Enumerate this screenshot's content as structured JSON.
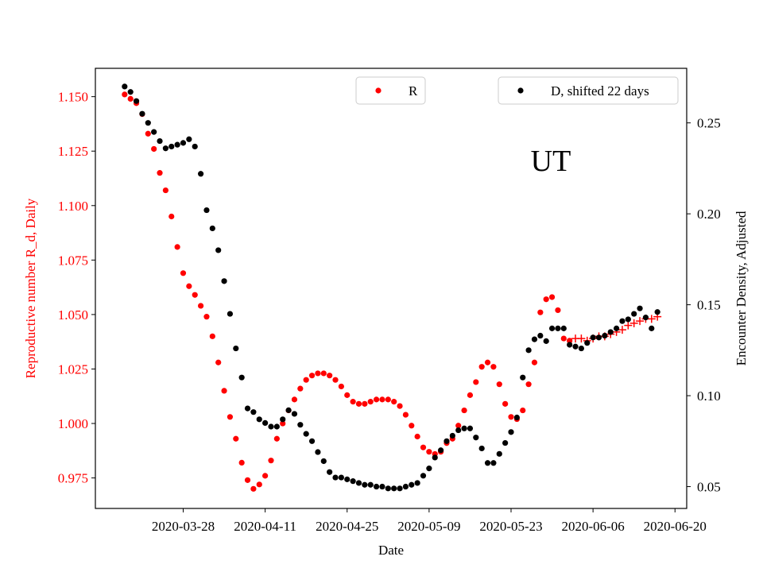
{
  "chart_data": {
    "type": "scatter",
    "annotation": "UT",
    "xlabel": "Date",
    "x_ticks": [
      "2020-03-28",
      "2020-04-11",
      "2020-04-25",
      "2020-05-09",
      "2020-05-23",
      "2020-06-06",
      "2020-06-20"
    ],
    "xlim": [
      "2020-03-13",
      "2020-06-22"
    ],
    "y_left": {
      "label": "Reproductive number R_d, Daily",
      "color": "#ff0000",
      "ticks": [
        "0.975",
        "1.000",
        "1.025",
        "1.050",
        "1.075",
        "1.100",
        "1.125",
        "1.150"
      ],
      "lim": [
        0.961,
        1.163
      ]
    },
    "y_right": {
      "label": "Encounter Density, Adjusted",
      "color": "#000000",
      "ticks": [
        "0.05",
        "0.10",
        "0.15",
        "0.20",
        "0.25"
      ],
      "lim": [
        0.038,
        0.28
      ]
    },
    "legend": [
      {
        "label": "R",
        "color": "#ff0000",
        "position": "top-center"
      },
      {
        "label": "D, shifted 22 days",
        "color": "#000000",
        "position": "top-right"
      }
    ],
    "series": [
      {
        "name": "R",
        "axis": "left",
        "color": "#ff0000",
        "marker": "dot",
        "data": [
          [
            "2020-03-18",
            1.151
          ],
          [
            "2020-03-19",
            1.149
          ],
          [
            "2020-03-20",
            1.147
          ],
          [
            "2020-03-21",
            1.142
          ],
          [
            "2020-03-22",
            1.133
          ],
          [
            "2020-03-23",
            1.126
          ],
          [
            "2020-03-24",
            1.115
          ],
          [
            "2020-03-25",
            1.107
          ],
          [
            "2020-03-26",
            1.095
          ],
          [
            "2020-03-27",
            1.081
          ],
          [
            "2020-03-28",
            1.069
          ],
          [
            "2020-03-29",
            1.063
          ],
          [
            "2020-03-30",
            1.059
          ],
          [
            "2020-03-31",
            1.054
          ],
          [
            "2020-04-01",
            1.049
          ],
          [
            "2020-04-02",
            1.04
          ],
          [
            "2020-04-03",
            1.028
          ],
          [
            "2020-04-04",
            1.015
          ],
          [
            "2020-04-05",
            1.003
          ],
          [
            "2020-04-06",
            0.993
          ],
          [
            "2020-04-07",
            0.982
          ],
          [
            "2020-04-08",
            0.974
          ],
          [
            "2020-04-09",
            0.97
          ],
          [
            "2020-04-10",
            0.972
          ],
          [
            "2020-04-11",
            0.976
          ],
          [
            "2020-04-12",
            0.983
          ],
          [
            "2020-04-13",
            0.993
          ],
          [
            "2020-04-14",
            1.0
          ],
          [
            "2020-04-15",
            1.006
          ],
          [
            "2020-04-16",
            1.011
          ],
          [
            "2020-04-17",
            1.016
          ],
          [
            "2020-04-18",
            1.02
          ],
          [
            "2020-04-19",
            1.022
          ],
          [
            "2020-04-20",
            1.023
          ],
          [
            "2020-04-21",
            1.023
          ],
          [
            "2020-04-22",
            1.022
          ],
          [
            "2020-04-23",
            1.02
          ],
          [
            "2020-04-24",
            1.017
          ],
          [
            "2020-04-25",
            1.013
          ],
          [
            "2020-04-26",
            1.01
          ],
          [
            "2020-04-27",
            1.009
          ],
          [
            "2020-04-28",
            1.009
          ],
          [
            "2020-04-29",
            1.01
          ],
          [
            "2020-04-30",
            1.011
          ],
          [
            "2020-05-01",
            1.011
          ],
          [
            "2020-05-02",
            1.011
          ],
          [
            "2020-05-03",
            1.01
          ],
          [
            "2020-05-04",
            1.008
          ],
          [
            "2020-05-05",
            1.004
          ],
          [
            "2020-05-06",
            0.999
          ],
          [
            "2020-05-07",
            0.994
          ],
          [
            "2020-05-08",
            0.989
          ],
          [
            "2020-05-09",
            0.987
          ],
          [
            "2020-05-10",
            0.986
          ],
          [
            "2020-05-11",
            0.987
          ],
          [
            "2020-05-12",
            0.991
          ],
          [
            "2020-05-13",
            0.993
          ],
          [
            "2020-05-14",
            0.999
          ],
          [
            "2020-05-15",
            1.006
          ],
          [
            "2020-05-16",
            1.013
          ],
          [
            "2020-05-17",
            1.019
          ],
          [
            "2020-05-18",
            1.026
          ],
          [
            "2020-05-19",
            1.028
          ],
          [
            "2020-05-20",
            1.026
          ],
          [
            "2020-05-21",
            1.018
          ],
          [
            "2020-05-22",
            1.009
          ],
          [
            "2020-05-23",
            1.003
          ],
          [
            "2020-05-24",
            1.002
          ],
          [
            "2020-05-25",
            1.006
          ],
          [
            "2020-05-26",
            1.018
          ],
          [
            "2020-05-27",
            1.028
          ],
          [
            "2020-05-28",
            1.051
          ],
          [
            "2020-05-29",
            1.057
          ],
          [
            "2020-05-30",
            1.058
          ],
          [
            "2020-05-31",
            1.052
          ],
          [
            "2020-06-01",
            1.039
          ],
          [
            "2020-06-02",
            1.038
          ]
        ]
      },
      {
        "name": "R",
        "axis": "left",
        "color": "#ff0000",
        "marker": "plus",
        "data": [
          [
            "2020-06-03",
            1.039
          ],
          [
            "2020-06-04",
            1.039
          ],
          [
            "2020-06-05",
            1.038
          ],
          [
            "2020-06-06",
            1.039
          ],
          [
            "2020-06-07",
            1.04
          ],
          [
            "2020-06-08",
            1.04
          ],
          [
            "2020-06-09",
            1.041
          ],
          [
            "2020-06-10",
            1.042
          ],
          [
            "2020-06-11",
            1.043
          ],
          [
            "2020-06-12",
            1.045
          ],
          [
            "2020-06-13",
            1.046
          ],
          [
            "2020-06-14",
            1.047
          ],
          [
            "2020-06-15",
            1.048
          ],
          [
            "2020-06-16",
            1.048
          ],
          [
            "2020-06-17",
            1.049
          ]
        ]
      },
      {
        "name": "D, shifted 22 days",
        "axis": "right",
        "color": "#000000",
        "marker": "dot",
        "data": [
          [
            "2020-03-18",
            0.27
          ],
          [
            "2020-03-19",
            0.267
          ],
          [
            "2020-03-20",
            0.262
          ],
          [
            "2020-03-21",
            0.255
          ],
          [
            "2020-03-22",
            0.25
          ],
          [
            "2020-03-23",
            0.245
          ],
          [
            "2020-03-24",
            0.24
          ],
          [
            "2020-03-25",
            0.236
          ],
          [
            "2020-03-26",
            0.237
          ],
          [
            "2020-03-27",
            0.238
          ],
          [
            "2020-03-28",
            0.239
          ],
          [
            "2020-03-29",
            0.241
          ],
          [
            "2020-03-30",
            0.237
          ],
          [
            "2020-03-31",
            0.222
          ],
          [
            "2020-04-01",
            0.202
          ],
          [
            "2020-04-02",
            0.192
          ],
          [
            "2020-04-03",
            0.18
          ],
          [
            "2020-04-04",
            0.163
          ],
          [
            "2020-04-05",
            0.145
          ],
          [
            "2020-04-06",
            0.126
          ],
          [
            "2020-04-07",
            0.11
          ],
          [
            "2020-04-08",
            0.093
          ],
          [
            "2020-04-09",
            0.091
          ],
          [
            "2020-04-10",
            0.087
          ],
          [
            "2020-04-11",
            0.085
          ],
          [
            "2020-04-12",
            0.083
          ],
          [
            "2020-04-13",
            0.083
          ],
          [
            "2020-04-14",
            0.087
          ],
          [
            "2020-04-15",
            0.092
          ],
          [
            "2020-04-16",
            0.09
          ],
          [
            "2020-04-17",
            0.084
          ],
          [
            "2020-04-18",
            0.079
          ],
          [
            "2020-04-19",
            0.075
          ],
          [
            "2020-04-20",
            0.069
          ],
          [
            "2020-04-21",
            0.064
          ],
          [
            "2020-04-22",
            0.058
          ],
          [
            "2020-04-23",
            0.055
          ],
          [
            "2020-04-24",
            0.055
          ],
          [
            "2020-04-25",
            0.054
          ],
          [
            "2020-04-26",
            0.053
          ],
          [
            "2020-04-27",
            0.052
          ],
          [
            "2020-04-28",
            0.051
          ],
          [
            "2020-04-29",
            0.051
          ],
          [
            "2020-04-30",
            0.05
          ],
          [
            "2020-05-01",
            0.05
          ],
          [
            "2020-05-02",
            0.049
          ],
          [
            "2020-05-03",
            0.049
          ],
          [
            "2020-05-04",
            0.049
          ],
          [
            "2020-05-05",
            0.05
          ],
          [
            "2020-05-06",
            0.051
          ],
          [
            "2020-05-07",
            0.052
          ],
          [
            "2020-05-08",
            0.056
          ],
          [
            "2020-05-09",
            0.06
          ],
          [
            "2020-05-10",
            0.066
          ],
          [
            "2020-05-11",
            0.07
          ],
          [
            "2020-05-12",
            0.075
          ],
          [
            "2020-05-13",
            0.078
          ],
          [
            "2020-05-14",
            0.081
          ],
          [
            "2020-05-15",
            0.082
          ],
          [
            "2020-05-16",
            0.082
          ],
          [
            "2020-05-17",
            0.077
          ],
          [
            "2020-05-18",
            0.071
          ],
          [
            "2020-05-19",
            0.063
          ],
          [
            "2020-05-20",
            0.063
          ],
          [
            "2020-05-21",
            0.068
          ],
          [
            "2020-05-22",
            0.074
          ],
          [
            "2020-05-23",
            0.08
          ],
          [
            "2020-05-24",
            0.088
          ],
          [
            "2020-05-25",
            0.11
          ],
          [
            "2020-05-26",
            0.125
          ],
          [
            "2020-05-27",
            0.131
          ],
          [
            "2020-05-28",
            0.133
          ],
          [
            "2020-05-29",
            0.13
          ],
          [
            "2020-05-30",
            0.137
          ],
          [
            "2020-05-31",
            0.137
          ],
          [
            "2020-06-01",
            0.137
          ],
          [
            "2020-06-02",
            0.128
          ],
          [
            "2020-06-03",
            0.127
          ],
          [
            "2020-06-04",
            0.126
          ],
          [
            "2020-06-05",
            0.129
          ],
          [
            "2020-06-06",
            0.132
          ],
          [
            "2020-06-07",
            0.132
          ],
          [
            "2020-06-08",
            0.133
          ],
          [
            "2020-06-09",
            0.135
          ],
          [
            "2020-06-10",
            0.137
          ],
          [
            "2020-06-11",
            0.141
          ],
          [
            "2020-06-12",
            0.142
          ],
          [
            "2020-06-13",
            0.145
          ],
          [
            "2020-06-14",
            0.148
          ],
          [
            "2020-06-15",
            0.143
          ],
          [
            "2020-06-16",
            0.137
          ],
          [
            "2020-06-17",
            0.146
          ]
        ]
      }
    ]
  }
}
